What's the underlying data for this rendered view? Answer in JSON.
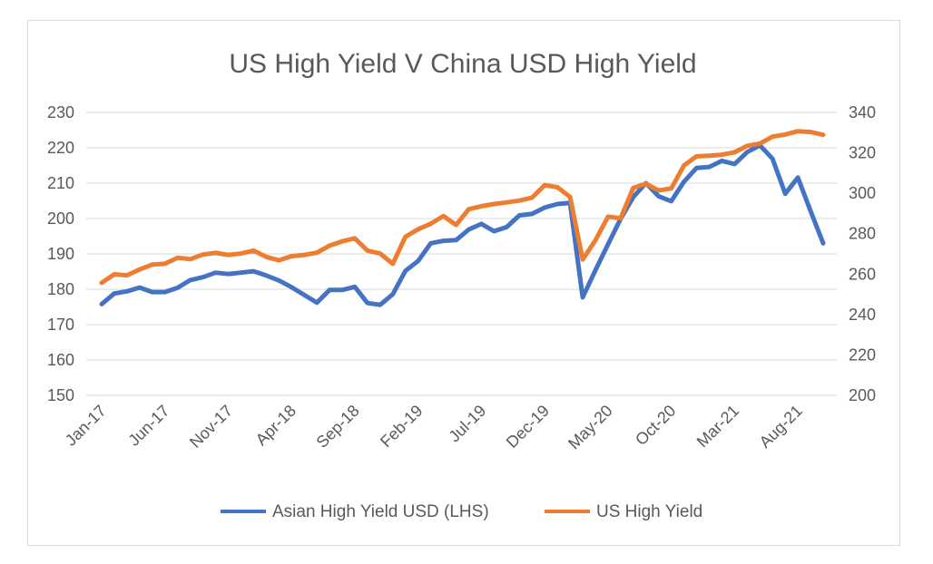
{
  "chart_data": {
    "type": "line",
    "title": "US High Yield V China USD High Yield",
    "x_tick_labels": [
      "Jan-17",
      "Jun-17",
      "Nov-17",
      "Apr-18",
      "Sep-18",
      "Feb-19",
      "Jul-19",
      "Dec-19",
      "May-20",
      "Oct-20",
      "Mar-21",
      "Aug-21"
    ],
    "y_left": {
      "ticks": [
        "150",
        "160",
        "170",
        "180",
        "190",
        "200",
        "210",
        "220",
        "230"
      ],
      "min": 150,
      "max": 230
    },
    "y_right": {
      "ticks": [
        "200",
        "220",
        "240",
        "260",
        "280",
        "300",
        "320",
        "340"
      ],
      "min": 200,
      "max": 340
    },
    "grid": true,
    "legend_position": "bottom",
    "series": [
      {
        "name": "Asian High Yield USD (LHS)",
        "axis": "left",
        "color": "#4472c4",
        "values": [
          175.8,
          178.8,
          179.4,
          180.5,
          179.2,
          179.2,
          180.4,
          182.6,
          183.4,
          184.7,
          184.3,
          184.7,
          185.1,
          183.9,
          182.5,
          180.6,
          178.4,
          176.2,
          179.8,
          179.8,
          180.7,
          176.1,
          175.6,
          178.6,
          185.2,
          188.0,
          193.0,
          193.7,
          193.9,
          196.9,
          198.5,
          196.4,
          197.6,
          200.9,
          201.3,
          203.1,
          204.1,
          204.4,
          177.7,
          185.3,
          192.7,
          199.9,
          206.1,
          210.0,
          206.3,
          204.9,
          210.4,
          214.3,
          214.6,
          216.3,
          215.4,
          218.8,
          220.7,
          216.9,
          207.0,
          211.6,
          202.1,
          193.0
        ]
      },
      {
        "name": "US High Yield",
        "axis": "right",
        "color": "#ed7d31",
        "values": [
          255.7,
          259.9,
          259.4,
          262.3,
          264.7,
          265.1,
          268.1,
          267.4,
          269.7,
          270.5,
          269.5,
          270.2,
          271.6,
          268.5,
          266.8,
          268.9,
          269.5,
          270.6,
          274.1,
          276.2,
          277.7,
          271.6,
          270.2,
          265.1,
          278.5,
          282.2,
          284.9,
          288.7,
          284.3,
          292.1,
          293.6,
          294.7,
          295.5,
          296.4,
          297.8,
          304.0,
          303.0,
          298.2,
          267.2,
          276.6,
          288.4,
          287.7,
          302.7,
          304.7,
          301.4,
          302.4,
          313.8,
          318.3,
          318.6,
          319.1,
          320.3,
          323.5,
          324.6,
          328.0,
          329.1,
          330.7,
          330.3,
          328.9
        ]
      }
    ]
  }
}
